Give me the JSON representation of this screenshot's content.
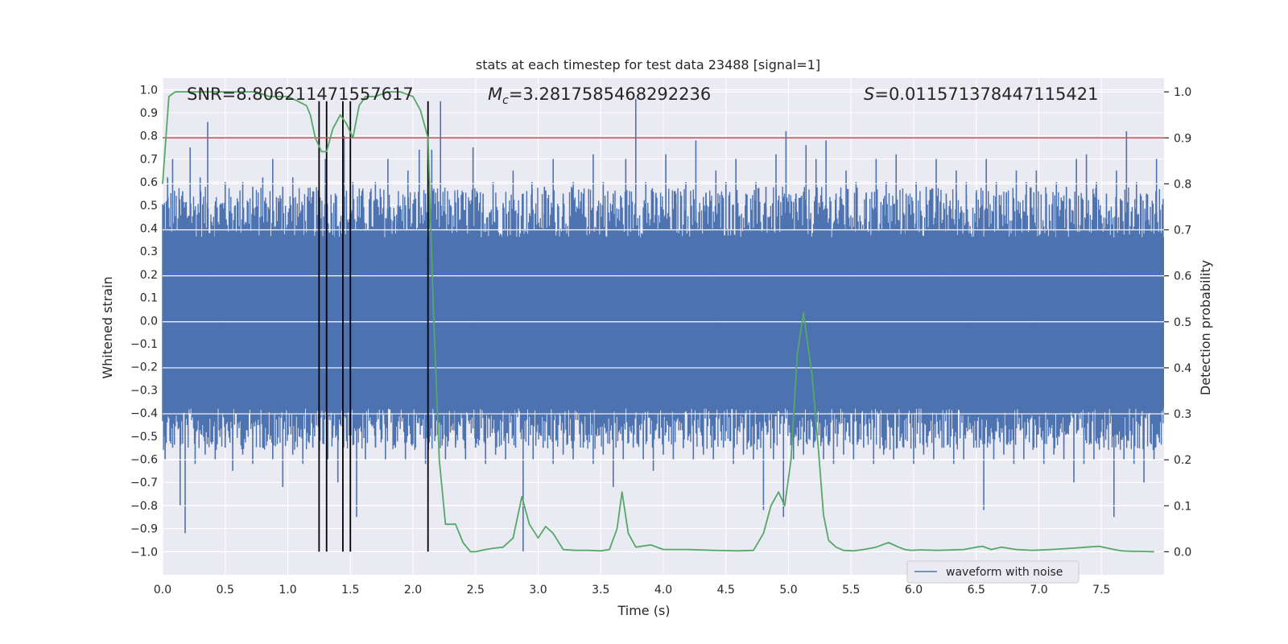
{
  "chart_data": {
    "type": "line",
    "title": "stats at each timestep for test data 23488 [signal=1]",
    "xlabel": "Time (s)",
    "ylabel": "Whitened strain",
    "y2label": "Detection probability",
    "xlim": [
      0.0,
      8.0
    ],
    "ylim": [
      -1.1,
      1.05
    ],
    "y2lim": [
      -0.05,
      1.03
    ],
    "x_ticks": [
      0.0,
      0.5,
      1.0,
      1.5,
      2.0,
      2.5,
      3.0,
      3.5,
      4.0,
      4.5,
      5.0,
      5.5,
      6.0,
      6.5,
      7.0,
      7.5
    ],
    "x_tick_labels": [
      "0.0",
      "0.5",
      "1.0",
      "1.5",
      "2.0",
      "2.5",
      "3.0",
      "3.5",
      "4.0",
      "4.5",
      "5.0",
      "5.5",
      "6.0",
      "6.5",
      "7.0",
      "7.5"
    ],
    "y_ticks": [
      1.0,
      0.9,
      0.8,
      0.7,
      0.6,
      0.5,
      0.4,
      0.3,
      0.2,
      0.1,
      0.0,
      -0.1,
      -0.2,
      -0.3,
      -0.4,
      -0.5,
      -0.6,
      -0.7,
      -0.8,
      -0.9,
      -1.0
    ],
    "y_tick_labels": [
      "1.0",
      "0.9",
      "0.8",
      "0.7",
      "0.6",
      "0.5",
      "0.4",
      "0.3",
      "0.2",
      "0.1",
      "0.0",
      "−0.1",
      "−0.2",
      "−0.3",
      "−0.4",
      "−0.5",
      "−0.6",
      "−0.7",
      "−0.8",
      "−0.9",
      "−1.0"
    ],
    "y2_ticks": [
      1.0,
      0.9,
      0.8,
      0.7,
      0.6,
      0.5,
      0.4,
      0.3,
      0.2,
      0.1,
      0.0
    ],
    "y2_tick_labels": [
      "1.0",
      "0.9",
      "0.8",
      "0.7",
      "0.6",
      "0.5",
      "0.4",
      "0.3",
      "0.2",
      "0.1",
      "0.0"
    ],
    "threshold": {
      "axis": "y2",
      "value": 0.9,
      "color": "#c44e52"
    },
    "vertical_markers": {
      "x": [
        1.25,
        1.31,
        1.44,
        1.5,
        2.12
      ],
      "y_from": -1.0,
      "y_to": 0.95,
      "color": "#000000"
    },
    "annotations": [
      {
        "name": "snr",
        "text": "SNR=8.806211471557617"
      },
      {
        "name": "chirp-mass",
        "prefix": "M",
        "subscript": "c",
        "text": "=3.2817585468292236"
      },
      {
        "name": "s-value",
        "prefix": "S",
        "text": "=0.011571378447115421"
      }
    ],
    "series": [
      {
        "name": "waveform with noise",
        "axis": "y",
        "color": "#4c72b0",
        "render": "band",
        "x": [
          0.0,
          8.0
        ],
        "core_band": [
          -0.38,
          0.36
        ],
        "peaks_up": [
          [
            0.04,
            0.62
          ],
          [
            0.08,
            0.7
          ],
          [
            0.16,
            0.56
          ],
          [
            0.22,
            0.75
          ],
          [
            0.3,
            0.62
          ],
          [
            0.36,
            0.86
          ],
          [
            0.42,
            0.5
          ],
          [
            0.5,
            0.6
          ],
          [
            0.58,
            0.5
          ],
          [
            0.64,
            0.6
          ],
          [
            0.72,
            0.58
          ],
          [
            0.8,
            0.62
          ],
          [
            0.88,
            0.7
          ],
          [
            0.96,
            0.58
          ],
          [
            1.04,
            0.62
          ],
          [
            1.12,
            0.5
          ],
          [
            1.2,
            0.56
          ],
          [
            1.3,
            0.7
          ],
          [
            1.38,
            0.55
          ],
          [
            1.45,
            0.8
          ],
          [
            1.52,
            0.6
          ],
          [
            1.6,
            0.55
          ],
          [
            1.7,
            0.6
          ],
          [
            1.8,
            0.7
          ],
          [
            1.88,
            0.5
          ],
          [
            1.96,
            0.65
          ],
          [
            2.05,
            0.74
          ],
          [
            2.1,
            0.55
          ],
          [
            2.15,
            0.74
          ],
          [
            2.22,
            0.95
          ],
          [
            2.3,
            0.5
          ],
          [
            2.4,
            0.55
          ],
          [
            2.48,
            0.75
          ],
          [
            2.56,
            0.55
          ],
          [
            2.64,
            0.6
          ],
          [
            2.72,
            0.5
          ],
          [
            2.8,
            0.65
          ],
          [
            2.88,
            0.55
          ],
          [
            2.95,
            0.6
          ],
          [
            3.05,
            0.58
          ],
          [
            3.12,
            0.7
          ],
          [
            3.2,
            0.55
          ],
          [
            3.28,
            0.6
          ],
          [
            3.36,
            0.55
          ],
          [
            3.44,
            0.72
          ],
          [
            3.52,
            0.6
          ],
          [
            3.6,
            0.55
          ],
          [
            3.7,
            0.7
          ],
          [
            3.78,
            0.96
          ],
          [
            3.86,
            0.6
          ],
          [
            3.94,
            0.55
          ],
          [
            4.02,
            0.72
          ],
          [
            4.1,
            0.55
          ],
          [
            4.18,
            0.6
          ],
          [
            4.26,
            0.78
          ],
          [
            4.34,
            0.55
          ],
          [
            4.42,
            0.65
          ],
          [
            4.5,
            0.6
          ],
          [
            4.58,
            0.7
          ],
          [
            4.66,
            0.55
          ],
          [
            4.74,
            0.6
          ],
          [
            4.82,
            0.58
          ],
          [
            4.9,
            0.72
          ],
          [
            4.98,
            0.82
          ],
          [
            5.06,
            0.55
          ],
          [
            5.14,
            0.76
          ],
          [
            5.22,
            0.7
          ],
          [
            5.3,
            0.78
          ],
          [
            5.38,
            0.55
          ],
          [
            5.46,
            0.65
          ],
          [
            5.54,
            0.6
          ],
          [
            5.62,
            0.55
          ],
          [
            5.7,
            0.7
          ],
          [
            5.78,
            0.6
          ],
          [
            5.86,
            0.72
          ],
          [
            5.94,
            0.55
          ],
          [
            6.02,
            0.6
          ],
          [
            6.1,
            0.58
          ],
          [
            6.18,
            0.7
          ],
          [
            6.26,
            0.55
          ],
          [
            6.34,
            0.65
          ],
          [
            6.42,
            0.6
          ],
          [
            6.5,
            0.55
          ],
          [
            6.58,
            0.7
          ],
          [
            6.66,
            0.6
          ],
          [
            6.74,
            0.55
          ],
          [
            6.82,
            0.65
          ],
          [
            6.9,
            0.6
          ],
          [
            6.98,
            0.65
          ],
          [
            7.06,
            0.55
          ],
          [
            7.14,
            0.6
          ],
          [
            7.22,
            0.58
          ],
          [
            7.3,
            0.7
          ],
          [
            7.38,
            0.72
          ],
          [
            7.46,
            0.6
          ],
          [
            7.54,
            0.55
          ],
          [
            7.62,
            0.65
          ],
          [
            7.7,
            0.82
          ],
          [
            7.78,
            0.6
          ],
          [
            7.86,
            0.55
          ],
          [
            7.94,
            0.7
          ]
        ],
        "peaks_down": [
          [
            0.02,
            -0.6
          ],
          [
            0.08,
            -0.55
          ],
          [
            0.14,
            -0.8
          ],
          [
            0.18,
            -0.92
          ],
          [
            0.26,
            -0.62
          ],
          [
            0.34,
            -0.58
          ],
          [
            0.42,
            -0.6
          ],
          [
            0.5,
            -0.55
          ],
          [
            0.56,
            -0.65
          ],
          [
            0.64,
            -0.58
          ],
          [
            0.72,
            -0.62
          ],
          [
            0.8,
            -0.55
          ],
          [
            0.88,
            -0.6
          ],
          [
            0.96,
            -0.72
          ],
          [
            1.04,
            -0.58
          ],
          [
            1.12,
            -0.62
          ],
          [
            1.2,
            -0.55
          ],
          [
            1.32,
            -0.6
          ],
          [
            1.4,
            -0.7
          ],
          [
            1.47,
            -0.5
          ],
          [
            1.55,
            -0.85
          ],
          [
            1.62,
            -0.6
          ],
          [
            1.7,
            -0.55
          ],
          [
            1.78,
            -0.6
          ],
          [
            1.86,
            -0.55
          ],
          [
            1.94,
            -0.6
          ],
          [
            2.02,
            -0.55
          ],
          [
            2.1,
            -0.62
          ],
          [
            2.18,
            -0.5
          ],
          [
            2.26,
            -0.6
          ],
          [
            2.34,
            -0.55
          ],
          [
            2.42,
            -0.6
          ],
          [
            2.5,
            -0.55
          ],
          [
            2.58,
            -0.62
          ],
          [
            2.66,
            -0.58
          ],
          [
            2.74,
            -0.6
          ],
          [
            2.82,
            -0.55
          ],
          [
            2.88,
            -1.0
          ],
          [
            2.96,
            -0.6
          ],
          [
            3.04,
            -0.55
          ],
          [
            3.12,
            -0.62
          ],
          [
            3.2,
            -0.58
          ],
          [
            3.28,
            -0.6
          ],
          [
            3.36,
            -0.55
          ],
          [
            3.44,
            -0.62
          ],
          [
            3.52,
            -0.58
          ],
          [
            3.6,
            -0.72
          ],
          [
            3.68,
            -0.6
          ],
          [
            3.76,
            -0.55
          ],
          [
            3.84,
            -0.6
          ],
          [
            3.92,
            -0.65
          ],
          [
            4.0,
            -0.58
          ],
          [
            4.08,
            -0.6
          ],
          [
            4.16,
            -0.55
          ],
          [
            4.24,
            -0.6
          ],
          [
            4.32,
            -0.58
          ],
          [
            4.4,
            -0.6
          ],
          [
            4.48,
            -0.55
          ],
          [
            4.56,
            -0.62
          ],
          [
            4.64,
            -0.58
          ],
          [
            4.72,
            -0.6
          ],
          [
            4.8,
            -0.82
          ],
          [
            4.88,
            -0.6
          ],
          [
            4.96,
            -0.85
          ],
          [
            5.04,
            -0.6
          ],
          [
            5.12,
            -0.58
          ],
          [
            5.2,
            -0.55
          ],
          [
            5.28,
            -0.6
          ],
          [
            5.36,
            -0.62
          ],
          [
            5.44,
            -0.58
          ],
          [
            5.52,
            -0.6
          ],
          [
            5.6,
            -0.55
          ],
          [
            5.68,
            -0.62
          ],
          [
            5.76,
            -0.58
          ],
          [
            5.84,
            -0.6
          ],
          [
            5.92,
            -0.55
          ],
          [
            6.0,
            -0.62
          ],
          [
            6.08,
            -0.58
          ],
          [
            6.16,
            -0.6
          ],
          [
            6.24,
            -0.55
          ],
          [
            6.32,
            -0.62
          ],
          [
            6.4,
            -0.6
          ],
          [
            6.48,
            -0.55
          ],
          [
            6.56,
            -0.82
          ],
          [
            6.64,
            -0.6
          ],
          [
            6.72,
            -0.58
          ],
          [
            6.8,
            -0.62
          ],
          [
            6.88,
            -0.6
          ],
          [
            6.96,
            -0.55
          ],
          [
            7.04,
            -0.62
          ],
          [
            7.12,
            -0.58
          ],
          [
            7.2,
            -0.6
          ],
          [
            7.28,
            -0.7
          ],
          [
            7.36,
            -0.62
          ],
          [
            7.44,
            -0.6
          ],
          [
            7.52,
            -0.55
          ],
          [
            7.6,
            -0.85
          ],
          [
            7.68,
            -0.6
          ],
          [
            7.76,
            -0.62
          ],
          [
            7.84,
            -0.7
          ],
          [
            7.92,
            -0.6
          ]
        ]
      },
      {
        "name": "detection probability",
        "axis": "y2",
        "color": "#55a868",
        "render": "line",
        "x": [
          0.0,
          0.05,
          0.1,
          0.2,
          0.35,
          0.5,
          0.65,
          0.75,
          0.85,
          0.9,
          1.0,
          1.08,
          1.15,
          1.18,
          1.22,
          1.27,
          1.31,
          1.36,
          1.42,
          1.47,
          1.52,
          1.57,
          1.62,
          1.7,
          1.8,
          1.9,
          2.0,
          2.06,
          2.12,
          2.16,
          2.21,
          2.26,
          2.34,
          2.4,
          2.46,
          2.5,
          2.58,
          2.65,
          2.72,
          2.8,
          2.87,
          2.93,
          3.0,
          3.06,
          3.12,
          3.2,
          3.3,
          3.4,
          3.5,
          3.57,
          3.63,
          3.67,
          3.72,
          3.78,
          3.9,
          4.0,
          4.2,
          4.4,
          4.6,
          4.72,
          4.8,
          4.86,
          4.92,
          4.97,
          5.02,
          5.07,
          5.12,
          5.19,
          5.24,
          5.28,
          5.32,
          5.38,
          5.44,
          5.52,
          5.6,
          5.7,
          5.8,
          5.88,
          5.93,
          5.98,
          6.05,
          6.2,
          6.4,
          6.5,
          6.55,
          6.62,
          6.7,
          6.82,
          6.95,
          7.1,
          7.28,
          7.38,
          7.48,
          7.55,
          7.6,
          7.66,
          7.75,
          7.8,
          7.92
        ],
        "values": [
          0.8,
          0.99,
          1.0,
          1.0,
          1.0,
          1.0,
          1.0,
          1.0,
          0.99,
          0.99,
          0.99,
          0.98,
          0.97,
          0.95,
          0.9,
          0.87,
          0.87,
          0.92,
          0.95,
          0.93,
          0.9,
          0.97,
          0.99,
          0.99,
          1.0,
          1.0,
          0.99,
          0.96,
          0.9,
          0.55,
          0.2,
          0.06,
          0.06,
          0.02,
          0.0,
          0.0,
          0.005,
          0.008,
          0.01,
          0.03,
          0.12,
          0.06,
          0.03,
          0.055,
          0.04,
          0.005,
          0.003,
          0.003,
          0.002,
          0.005,
          0.05,
          0.13,
          0.04,
          0.01,
          0.015,
          0.005,
          0.005,
          0.003,
          0.002,
          0.003,
          0.04,
          0.1,
          0.13,
          0.1,
          0.2,
          0.43,
          0.52,
          0.38,
          0.22,
          0.08,
          0.025,
          0.01,
          0.003,
          0.002,
          0.005,
          0.01,
          0.02,
          0.01,
          0.005,
          0.003,
          0.004,
          0.003,
          0.005,
          0.01,
          0.012,
          0.005,
          0.01,
          0.005,
          0.003,
          0.005,
          0.008,
          0.01,
          0.012,
          0.008,
          0.005,
          0.002,
          0.001,
          0.001,
          0.0
        ]
      }
    ],
    "legend": {
      "position": "bottom-right",
      "entries": [
        {
          "label": "waveform with noise",
          "color": "#4c72b0"
        }
      ]
    },
    "style": {
      "facecolor": "#eaeaf2",
      "gridcolor": "#ffffff",
      "grid": true
    }
  }
}
